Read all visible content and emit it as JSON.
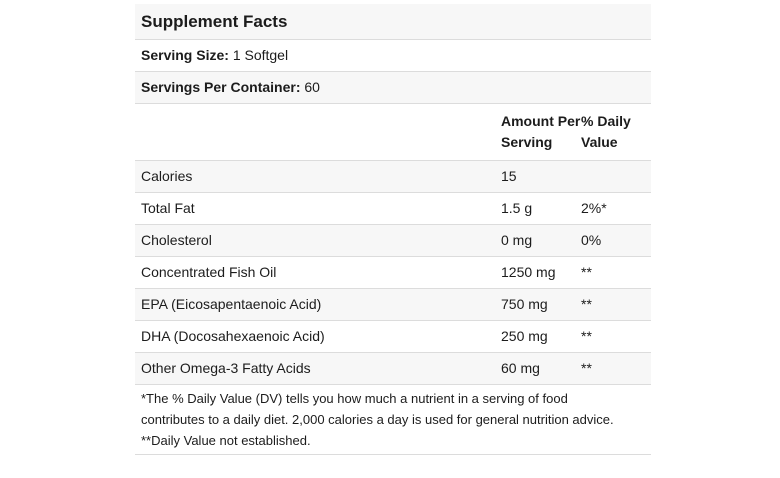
{
  "title": "Supplement Facts",
  "serving_size": {
    "label": "Serving Size:",
    "value": "1 Softgel"
  },
  "servings_per_container": {
    "label": "Servings Per Container:",
    "value": "60"
  },
  "columns": {
    "amount": "Amount Per Serving",
    "daily_value": "% Daily Value"
  },
  "rows": [
    {
      "name": "Calories",
      "amount": "15",
      "dv": ""
    },
    {
      "name": "Total Fat",
      "amount": "1.5 g",
      "dv": "2%*"
    },
    {
      "name": "Cholesterol",
      "amount": "0 mg",
      "dv": "0%"
    },
    {
      "name": "Concentrated Fish Oil",
      "amount": "1250 mg",
      "dv": "**"
    },
    {
      "name": "EPA (Eicosapentaenoic Acid)",
      "amount": "750 mg",
      "dv": "**"
    },
    {
      "name": "DHA (Docosahexaenoic Acid)",
      "amount": "250 mg",
      "dv": "**"
    },
    {
      "name": "Other Omega-3 Fatty Acids",
      "amount": "60 mg",
      "dv": "**"
    }
  ],
  "footnote": {
    "lines": [
      "*The % Daily Value (DV) tells you how much a nutrient in a serving of food",
      "contributes to a daily diet. 2,000 calories a day is used for general nutrition advice.",
      "**Daily Value not established."
    ]
  },
  "colors": {
    "stripe": "#f7f7f7",
    "divider": "#dcdcdc",
    "text": "#1c1c1c"
  }
}
